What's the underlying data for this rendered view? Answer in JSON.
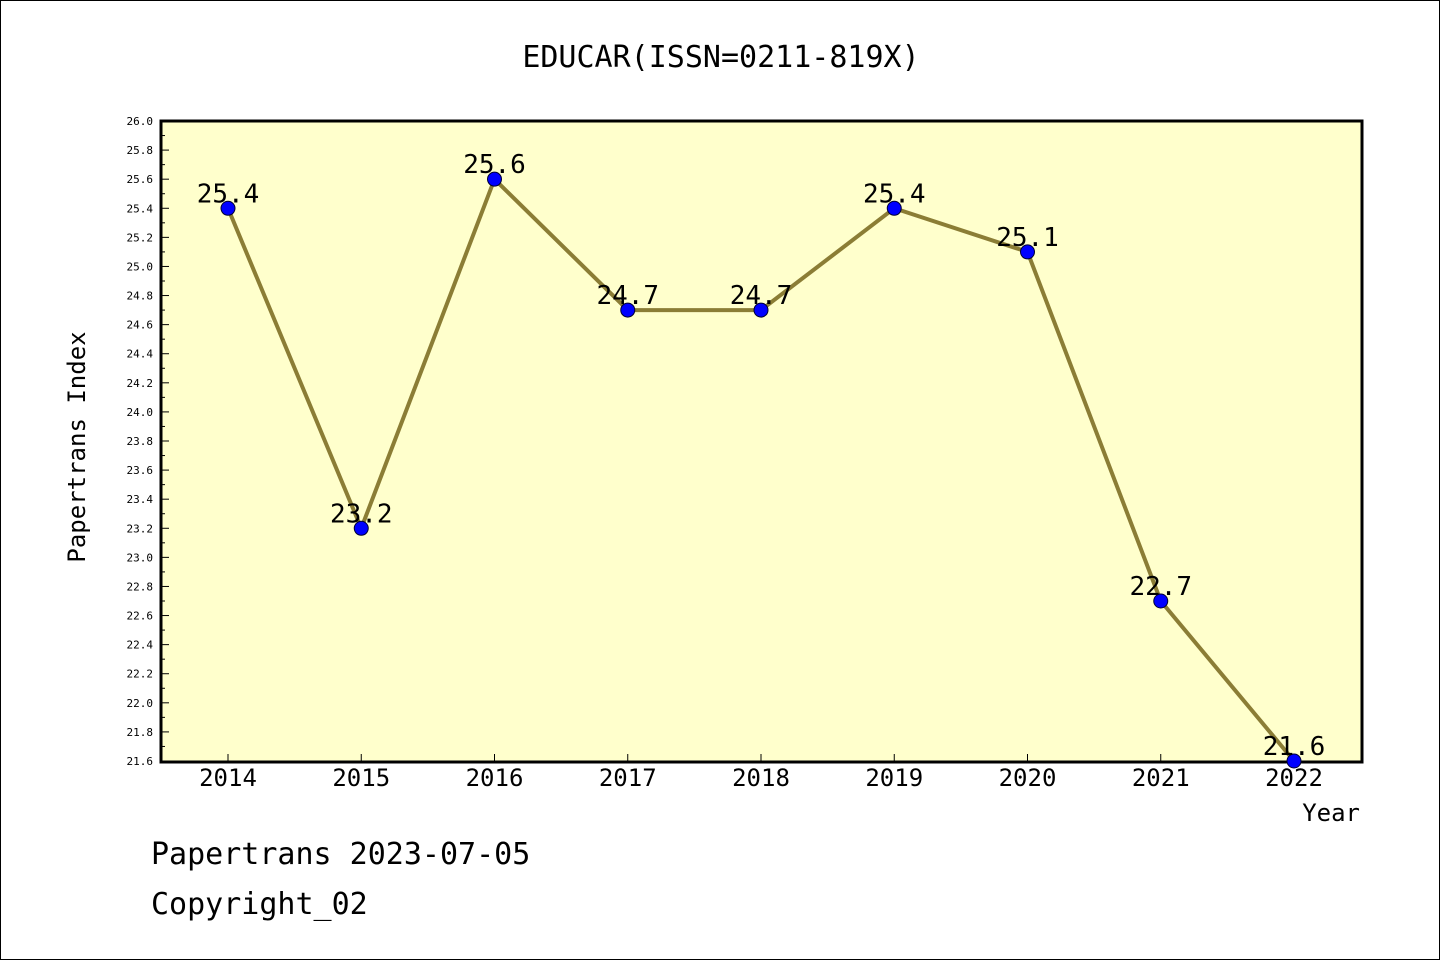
{
  "chart_data": {
    "type": "line",
    "title": "EDUCAR(ISSN=0211-819X)",
    "xlabel": "Year",
    "ylabel": "Papertrans Index",
    "categories": [
      "2014",
      "2015",
      "2016",
      "2017",
      "2018",
      "2019",
      "2020",
      "2021",
      "2022"
    ],
    "values": [
      25.4,
      23.2,
      25.6,
      24.7,
      24.7,
      25.4,
      25.1,
      22.7,
      21.6
    ],
    "data_labels": [
      "25.4",
      "23.2",
      "25.6",
      "24.7",
      "24.7",
      "25.4",
      "25.1",
      "22.7",
      "21.6"
    ],
    "ylim": [
      21.6,
      26.0
    ],
    "ytick_step": 0.2,
    "grid": false,
    "colors": {
      "plot_background": "#ffffcc",
      "line": "#8b7d35",
      "marker": "#0000ff",
      "axes": "#000000"
    }
  },
  "footer": {
    "line1": "Papertrans 2023-07-05",
    "line2": "Copyright_02"
  }
}
